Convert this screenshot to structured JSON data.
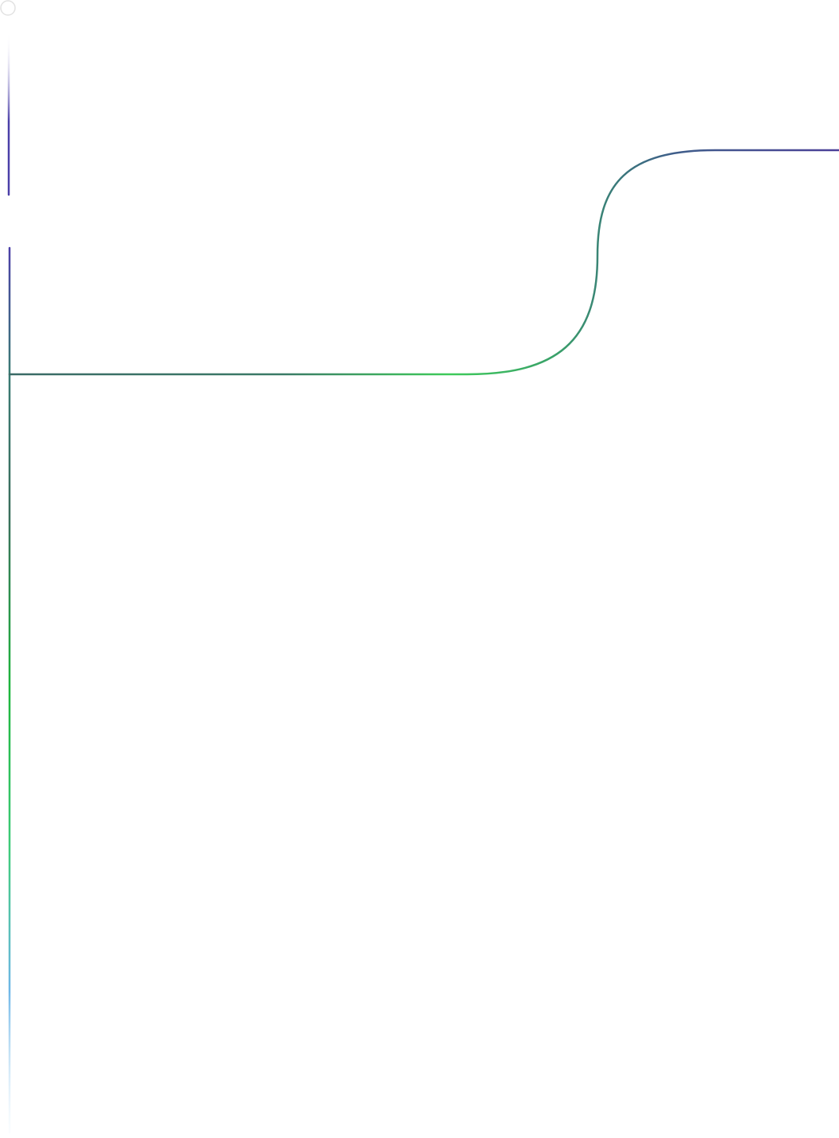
{
  "colors": {
    "background": "#ffffff",
    "indigo": "#4b3fa8",
    "slate_blue": "#3f4e8f",
    "teal": "#3a7a74",
    "green": "#3ecb5a",
    "bright_green": "#1db63c",
    "sky_blue": "#6fb7e8",
    "fade": "#e6f3fb",
    "node_ring": "#e2e2e2"
  },
  "decorations": {
    "start_node_icon": "circle-outline-icon"
  }
}
